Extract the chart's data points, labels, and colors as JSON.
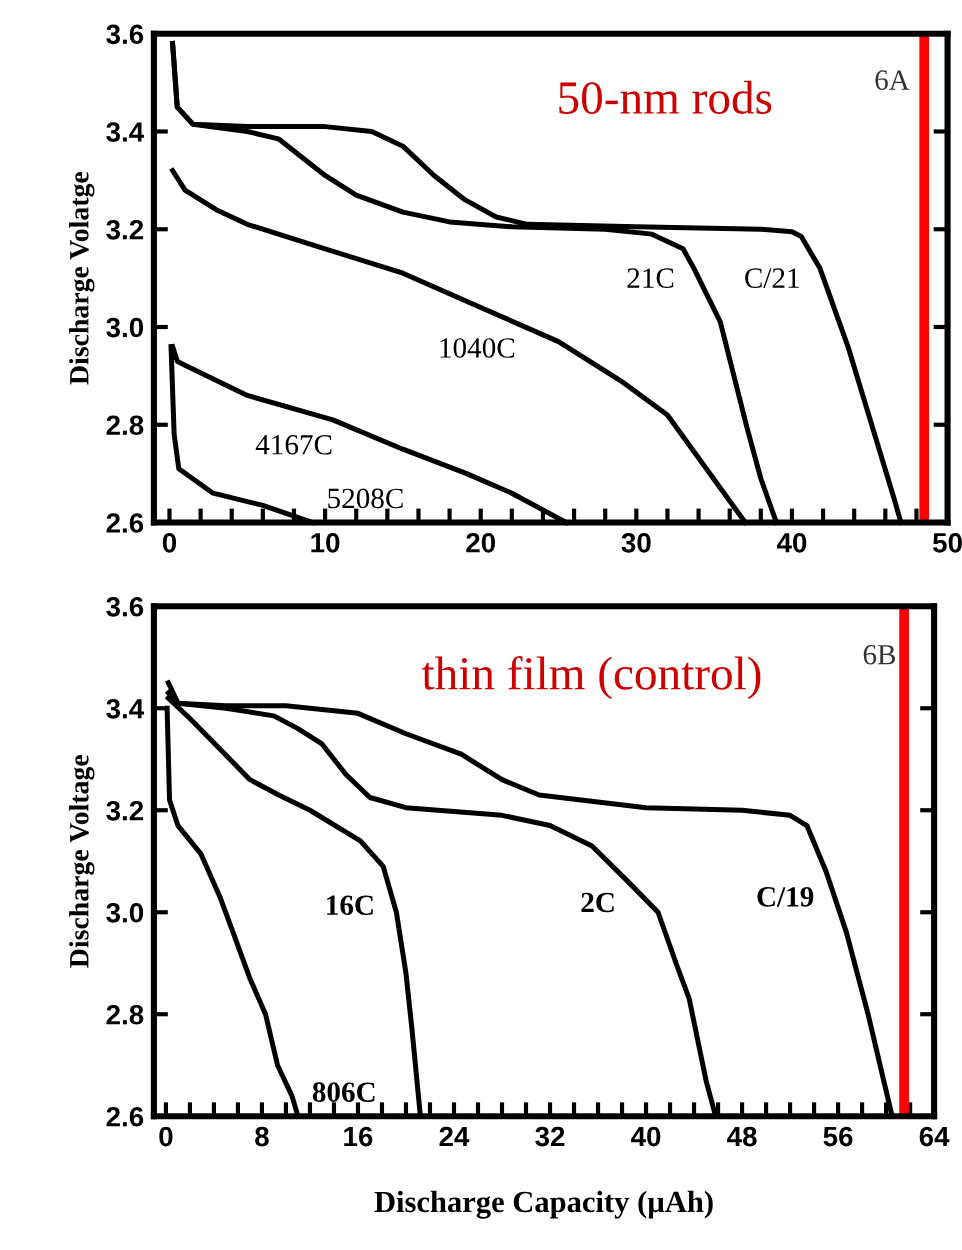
{
  "chart_data": [
    {
      "type": "line",
      "title": "50-nm rods",
      "ylabel": "Discharge Volatge",
      "xlim": [
        -1,
        50
      ],
      "ylim": [
        2.6,
        3.6
      ],
      "xticks": [
        0,
        {
          "value": 2,
          "label": null
        },
        {
          "value": 4,
          "label": null
        },
        {
          "value": 6,
          "label": null
        },
        {
          "value": 8,
          "label": null
        },
        10,
        {
          "value": 12,
          "label": null
        },
        {
          "value": 14,
          "label": null
        },
        {
          "value": 16,
          "label": null
        },
        {
          "value": 18,
          "label": null
        },
        20,
        {
          "value": 22,
          "label": null
        },
        {
          "value": 24,
          "label": null
        },
        {
          "value": 26,
          "label": null
        },
        {
          "value": 28,
          "label": null
        },
        30,
        {
          "value": 32,
          "label": null
        },
        {
          "value": 34,
          "label": null
        },
        {
          "value": 36,
          "label": null
        },
        {
          "value": 38,
          "label": null
        },
        40,
        {
          "value": 42,
          "label": null
        },
        {
          "value": 44,
          "label": null
        },
        {
          "value": 46,
          "label": null
        },
        {
          "value": 48,
          "label": null
        },
        50
      ],
      "yticks": [
        2.6,
        2.8,
        {
          "value": 3.0,
          "label": "3.0"
        },
        3.2,
        3.4,
        3.6
      ],
      "grid": false,
      "marker": "none",
      "line_style": "solid",
      "series": [
        {
          "name": "C/21",
          "color": "#000000",
          "x": [
            0.2,
            0.5,
            1.5,
            5,
            10,
            13,
            15,
            17,
            19,
            21,
            23,
            30,
            38,
            40,
            40.6,
            41.8,
            43.6,
            46.6,
            47
          ],
          "values": [
            3.58,
            3.45,
            3.415,
            3.41,
            3.41,
            3.4,
            3.37,
            3.31,
            3.26,
            3.225,
            3.21,
            3.205,
            3.2,
            3.195,
            3.185,
            3.12,
            2.96,
            2.645,
            2.6
          ]
        },
        {
          "name": "21C",
          "color": "#000000",
          "x": [
            0.2,
            0.5,
            1.5,
            5,
            7,
            8,
            10,
            12,
            15,
            18,
            22,
            28,
            31,
            33,
            33.7,
            35.4,
            37.1,
            38,
            39
          ],
          "values": [
            3.58,
            3.45,
            3.415,
            3.4,
            3.385,
            3.36,
            3.31,
            3.27,
            3.235,
            3.215,
            3.205,
            3.2,
            3.19,
            3.16,
            3.12,
            3.01,
            2.795,
            2.69,
            2.6
          ]
        },
        {
          "name": "1040C",
          "color": "#000000",
          "x": [
            0.2,
            1,
            3,
            5,
            10,
            15,
            20,
            25,
            29,
            32,
            34.5,
            37
          ],
          "values": [
            3.32,
            3.28,
            3.24,
            3.21,
            3.16,
            3.11,
            3.04,
            2.97,
            2.89,
            2.82,
            2.71,
            2.6
          ]
        },
        {
          "name": "4167C",
          "color": "#000000",
          "x": [
            0.2,
            0.5,
            1.1,
            5,
            10.5,
            15,
            19.1,
            22,
            25.5
          ],
          "values": [
            2.96,
            2.93,
            2.92,
            2.86,
            2.81,
            2.75,
            2.7,
            2.66,
            2.6
          ]
        },
        {
          "name": "5208C",
          "color": "#000000",
          "x": [
            0.1,
            0.3,
            0.6,
            2.8,
            6,
            9.2
          ],
          "values": [
            2.96,
            2.78,
            2.71,
            2.66,
            2.635,
            2.6
          ]
        }
      ],
      "annotations": [
        "6A"
      ],
      "ref_lines": [
        {
          "axis": "x",
          "value": 48.5,
          "color": "#ff0000"
        }
      ]
    },
    {
      "type": "line",
      "title": "thin film (control)",
      "ylabel": "Discharge Voltage",
      "xlabel": "Discharge Capacity (µAh)",
      "xlim": [
        -1,
        64
      ],
      "ylim": [
        2.6,
        3.6
      ],
      "xticks": [
        0,
        {
          "value": 2,
          "label": null
        },
        {
          "value": 4,
          "label": null
        },
        {
          "value": 6,
          "label": null
        },
        8,
        {
          "value": 10,
          "label": null
        },
        {
          "value": 12,
          "label": null
        },
        {
          "value": 14,
          "label": null
        },
        16,
        {
          "value": 18,
          "label": null
        },
        {
          "value": 20,
          "label": null
        },
        {
          "value": 22,
          "label": null
        },
        24,
        {
          "value": 26,
          "label": null
        },
        {
          "value": 28,
          "label": null
        },
        {
          "value": 30,
          "label": null
        },
        32,
        {
          "value": 34,
          "label": null
        },
        {
          "value": 36,
          "label": null
        },
        {
          "value": 38,
          "label": null
        },
        40,
        {
          "value": 42,
          "label": null
        },
        {
          "value": 44,
          "label": null
        },
        {
          "value": 46,
          "label": null
        },
        48,
        {
          "value": 50,
          "label": null
        },
        {
          "value": 52,
          "label": null
        },
        {
          "value": 54,
          "label": null
        },
        56,
        {
          "value": 58,
          "label": null
        },
        {
          "value": 60,
          "label": null
        },
        {
          "value": 62,
          "label": null
        },
        64
      ],
      "yticks": [
        2.6,
        2.8,
        {
          "value": 3.0,
          "label": "3.0"
        },
        3.2,
        3.4,
        3.6
      ],
      "grid": false,
      "marker": "none",
      "line_style": "solid",
      "series": [
        {
          "name": "C/19",
          "color": "#000000",
          "x": [
            0.2,
            1,
            5,
            10,
            16,
            20,
            24.6,
            28,
            31.1,
            40,
            48,
            52,
            53.4,
            55,
            56.7,
            58.5,
            60.5
          ],
          "values": [
            3.45,
            3.41,
            3.405,
            3.405,
            3.39,
            3.35,
            3.31,
            3.26,
            3.23,
            3.205,
            3.2,
            3.19,
            3.17,
            3.08,
            2.96,
            2.8,
            2.6
          ]
        },
        {
          "name": "2C",
          "color": "#000000",
          "x": [
            0.2,
            1,
            5,
            9,
            11,
            13,
            15,
            17,
            20,
            28,
            32,
            35.5,
            38.5,
            41,
            42.5,
            43.6,
            45,
            45.8
          ],
          "values": [
            3.43,
            3.41,
            3.4,
            3.385,
            3.36,
            3.33,
            3.27,
            3.225,
            3.205,
            3.19,
            3.17,
            3.13,
            3.06,
            3.0,
            2.9,
            2.83,
            2.67,
            2.6
          ]
        },
        {
          "name": "16C",
          "color": "#000000",
          "x": [
            0.2,
            2,
            4.5,
            7,
            9.4,
            12,
            16.2,
            18.1,
            19.2,
            20,
            20.5,
            21.2
          ],
          "values": [
            3.42,
            3.38,
            3.32,
            3.26,
            3.23,
            3.2,
            3.14,
            3.09,
            3.0,
            2.88,
            2.77,
            2.6
          ]
        },
        {
          "name": "806C",
          "color": "#000000",
          "x": [
            0.1,
            0.3,
            1,
            2.9,
            4.5,
            5.6,
            7,
            8.3,
            9.3,
            10.5,
            11
          ],
          "values": [
            3.4,
            3.22,
            3.17,
            3.115,
            3.03,
            2.96,
            2.87,
            2.8,
            2.7,
            2.64,
            2.6
          ]
        }
      ],
      "annotations": [
        "6B"
      ],
      "ref_lines": [
        {
          "axis": "x",
          "value": 61.5,
          "color": "#ff0000"
        }
      ]
    }
  ]
}
